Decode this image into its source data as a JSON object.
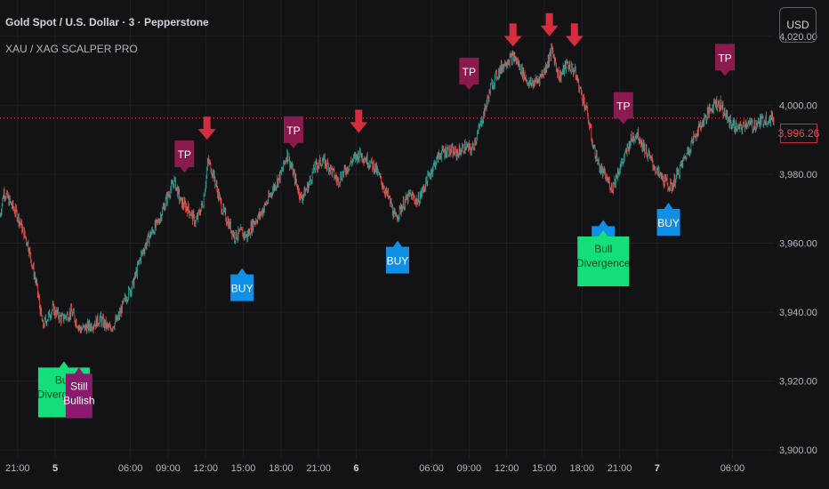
{
  "header": {
    "title": "Gold Spot / U.S. Dollar · 3 · Pepperstone",
    "indicator": "XAU / XAG SCALPER PRO"
  },
  "currency_button": "USD",
  "last_price_label": "3,996.26",
  "colors": {
    "background": "#131315",
    "grid": "#1f2023",
    "candle_up": "#26a69a",
    "candle_down": "#ef5350",
    "tp_label": "#8b1a4f",
    "buy_label": "#0f8fe6",
    "bull_label": "#13e07a",
    "still_bullish_label": "#8b1a6f",
    "sell_arrow": "#d42d3d",
    "axis_text": "#b2b5be"
  },
  "chart_data": {
    "type": "candlestick",
    "title": "Gold Spot / U.S. Dollar · 3 · Pepperstone",
    "y_axis": {
      "ticks": [
        3900,
        3920,
        3940,
        3960,
        3980,
        4000,
        4020
      ],
      "tick_labels": [
        "3,900.00",
        "3,920.00",
        "3,940.00",
        "3,960.00",
        "3,980.00",
        "4,000.00",
        "4,020.00"
      ],
      "range": [
        3898,
        4030
      ],
      "position": "right",
      "grid": true
    },
    "x_axis": {
      "tick_labels": [
        {
          "t": 0,
          "label": "21:00",
          "bold": false
        },
        {
          "t": 3,
          "label": "5",
          "bold": true
        },
        {
          "t": 9,
          "label": "06:00",
          "bold": false
        },
        {
          "t": 12,
          "label": "09:00",
          "bold": false
        },
        {
          "t": 15,
          "label": "12:00",
          "bold": false
        },
        {
          "t": 18,
          "label": "15:00",
          "bold": false
        },
        {
          "t": 21,
          "label": "18:00",
          "bold": false
        },
        {
          "t": 24,
          "label": "21:00",
          "bold": false
        },
        {
          "t": 27,
          "label": "6",
          "bold": true
        },
        {
          "t": 33,
          "label": "06:00",
          "bold": false
        },
        {
          "t": 36,
          "label": "09:00",
          "bold": false
        },
        {
          "t": 39,
          "label": "12:00",
          "bold": false
        },
        {
          "t": 42,
          "label": "15:00",
          "bold": false
        },
        {
          "t": 45,
          "label": "18:00",
          "bold": false
        },
        {
          "t": 48,
          "label": "21:00",
          "bold": false
        },
        {
          "t": 51,
          "label": "7",
          "bold": true
        },
        {
          "t": 57,
          "label": "06:00",
          "bold": false
        }
      ],
      "range_hours": [
        -1.4,
        60.3
      ],
      "grid": true
    },
    "price_path": [
      [
        -1.4,
        3968
      ],
      [
        -1.1,
        3975
      ],
      [
        0,
        3968
      ],
      [
        0.8,
        3960
      ],
      [
        1.5,
        3948
      ],
      [
        2.0,
        3936
      ],
      [
        2.8,
        3941
      ],
      [
        3.5,
        3938
      ],
      [
        4.3,
        3940
      ],
      [
        5.0,
        3935
      ],
      [
        5.8,
        3936
      ],
      [
        6.6,
        3938
      ],
      [
        7.3,
        3935
      ],
      [
        8.0,
        3938
      ],
      [
        8.6,
        3944
      ],
      [
        9.2,
        3948
      ],
      [
        9.8,
        3956
      ],
      [
        10.5,
        3962
      ],
      [
        11.2,
        3966
      ],
      [
        12.0,
        3974
      ],
      [
        12.5,
        3978
      ],
      [
        13.0,
        3972
      ],
      [
        13.6,
        3970
      ],
      [
        14.2,
        3966
      ],
      [
        14.8,
        3972
      ],
      [
        15.2,
        3984
      ],
      [
        15.6,
        3980
      ],
      [
        16.3,
        3970
      ],
      [
        16.8,
        3966
      ],
      [
        17.3,
        3962
      ],
      [
        17.8,
        3963
      ],
      [
        18.3,
        3962
      ],
      [
        18.8,
        3966
      ],
      [
        19.3,
        3968
      ],
      [
        19.9,
        3972
      ],
      [
        20.4,
        3976
      ],
      [
        21.0,
        3980
      ],
      [
        21.5,
        3986
      ],
      [
        22.0,
        3980
      ],
      [
        22.6,
        3973
      ],
      [
        23.1,
        3976
      ],
      [
        23.7,
        3982
      ],
      [
        24.3,
        3984
      ],
      [
        24.9,
        3982
      ],
      [
        25.5,
        3978
      ],
      [
        26.1,
        3981
      ],
      [
        26.7,
        3984
      ],
      [
        27.3,
        3986
      ],
      [
        27.9,
        3984
      ],
      [
        28.5,
        3982
      ],
      [
        29.1,
        3977
      ],
      [
        29.7,
        3972
      ],
      [
        30.1,
        3967
      ],
      [
        30.7,
        3971
      ],
      [
        31.3,
        3974
      ],
      [
        31.9,
        3972
      ],
      [
        32.5,
        3977
      ],
      [
        33.1,
        3982
      ],
      [
        33.7,
        3986
      ],
      [
        34.3,
        3987
      ],
      [
        35.0,
        3986
      ],
      [
        35.7,
        3988
      ],
      [
        36.2,
        3987
      ],
      [
        36.7,
        3992
      ],
      [
        37.2,
        3998
      ],
      [
        37.8,
        4006
      ],
      [
        38.4,
        4010
      ],
      [
        39.0,
        4013
      ],
      [
        39.6,
        4014
      ],
      [
        40.2,
        4010
      ],
      [
        40.8,
        4006
      ],
      [
        41.4,
        4007
      ],
      [
        42.0,
        4010
      ],
      [
        42.6,
        4016
      ],
      [
        43.2,
        4008
      ],
      [
        43.8,
        4012
      ],
      [
        44.4,
        4010
      ],
      [
        44.9,
        4004
      ],
      [
        45.4,
        3998
      ],
      [
        45.9,
        3988
      ],
      [
        46.4,
        3982
      ],
      [
        46.9,
        3979
      ],
      [
        47.4,
        3976
      ],
      [
        47.9,
        3981
      ],
      [
        48.4,
        3985
      ],
      [
        48.9,
        3990
      ],
      [
        49.4,
        3992
      ],
      [
        49.9,
        3988
      ],
      [
        50.5,
        3984
      ],
      [
        51.1,
        3980
      ],
      [
        51.6,
        3978
      ],
      [
        52.1,
        3976
      ],
      [
        52.6,
        3980
      ],
      [
        53.1,
        3984
      ],
      [
        53.6,
        3988
      ],
      [
        54.1,
        3992
      ],
      [
        54.6,
        3995
      ],
      [
        55.1,
        3998
      ],
      [
        55.6,
        4001
      ],
      [
        56.1,
        4000
      ],
      [
        56.6,
        3996
      ],
      [
        57.1,
        3994
      ],
      [
        57.6,
        3993
      ],
      [
        58.1,
        3995
      ],
      [
        58.6,
        3994
      ],
      [
        59.1,
        3995
      ],
      [
        59.6,
        3996
      ],
      [
        60.3,
        3996.26
      ]
    ],
    "last_price": 3996.26,
    "signals": [
      {
        "kind": "tp",
        "text": "TP",
        "t": 13.3,
        "price": 3980
      },
      {
        "kind": "tp",
        "text": "TP",
        "t": 22.0,
        "price": 3987
      },
      {
        "kind": "tp",
        "text": "TP",
        "t": 36.0,
        "price": 4004
      },
      {
        "kind": "tp",
        "text": "TP",
        "t": 48.3,
        "price": 3994
      },
      {
        "kind": "tp",
        "text": "TP",
        "t": 56.4,
        "price": 4008
      },
      {
        "kind": "sell",
        "text": "",
        "t": 15.1,
        "price": 3990
      },
      {
        "kind": "sell",
        "text": "",
        "t": 27.2,
        "price": 3992
      },
      {
        "kind": "sell",
        "text": "",
        "t": 39.5,
        "price": 4017
      },
      {
        "kind": "sell",
        "text": "",
        "t": 42.4,
        "price": 4020
      },
      {
        "kind": "sell",
        "text": "",
        "t": 44.4,
        "price": 4017
      },
      {
        "kind": "buy",
        "text": "BUY",
        "t": 17.9,
        "price": 3953
      },
      {
        "kind": "buy",
        "text": "BUY",
        "t": 30.3,
        "price": 3961
      },
      {
        "kind": "buy",
        "text": "BUY",
        "t": 46.7,
        "price": 3967
      },
      {
        "kind": "buy",
        "text": "BUY",
        "t": 51.9,
        "price": 3972
      },
      {
        "kind": "bull",
        "text": "Bull Divergence",
        "t": 3.7,
        "price": 3926
      },
      {
        "kind": "still",
        "text": "Still Bullish",
        "t": 4.9,
        "price": 3926
      },
      {
        "kind": "bull",
        "text": "Bull Divergence",
        "t": 46.7,
        "price": 3964
      }
    ]
  }
}
